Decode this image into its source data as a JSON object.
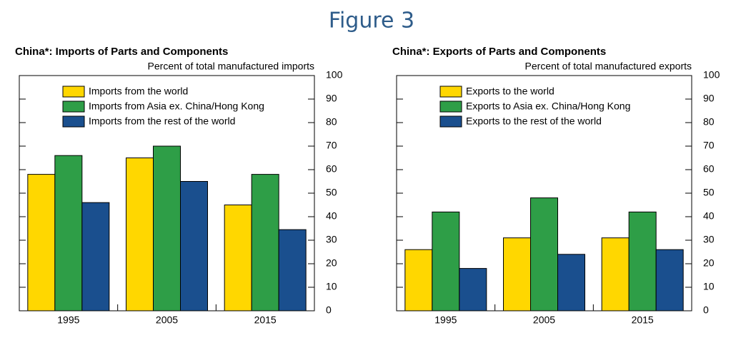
{
  "figure_title": "Figure 3",
  "chart_data": [
    {
      "type": "bar",
      "title": "China*:  Imports of Parts and Components",
      "subtitle": "Percent of total manufactured imports",
      "categories": [
        "1995",
        "2005",
        "2015"
      ],
      "series": [
        {
          "name": "Imports from the world",
          "color": "#ffd700",
          "values": [
            58,
            65,
            45
          ]
        },
        {
          "name": "Imports from Asia ex. China/Hong Kong",
          "color": "#2e9e47",
          "values": [
            66,
            70,
            58
          ]
        },
        {
          "name": "Imports from the rest of the world",
          "color": "#1a4f8e",
          "values": [
            46,
            55,
            34.5
          ]
        }
      ],
      "ylim": [
        0,
        100
      ],
      "yticks": [
        0,
        10,
        20,
        30,
        40,
        50,
        60,
        70,
        80,
        90,
        100
      ],
      "legend": "upper left"
    },
    {
      "type": "bar",
      "title": "China*:  Exports of Parts and Components",
      "subtitle": "Percent of total manufactured exports",
      "categories": [
        "1995",
        "2005",
        "2015"
      ],
      "series": [
        {
          "name": "Exports to the world",
          "color": "#ffd700",
          "values": [
            26,
            31,
            31
          ]
        },
        {
          "name": "Exports to Asia ex. China/Hong Kong",
          "color": "#2e9e47",
          "values": [
            42,
            48,
            42
          ]
        },
        {
          "name": "Exports to the rest of the world",
          "color": "#1a4f8e",
          "values": [
            18,
            24,
            26
          ]
        }
      ],
      "ylim": [
        0,
        100
      ],
      "yticks": [
        0,
        10,
        20,
        30,
        40,
        50,
        60,
        70,
        80,
        90,
        100
      ],
      "legend": "upper left"
    }
  ]
}
